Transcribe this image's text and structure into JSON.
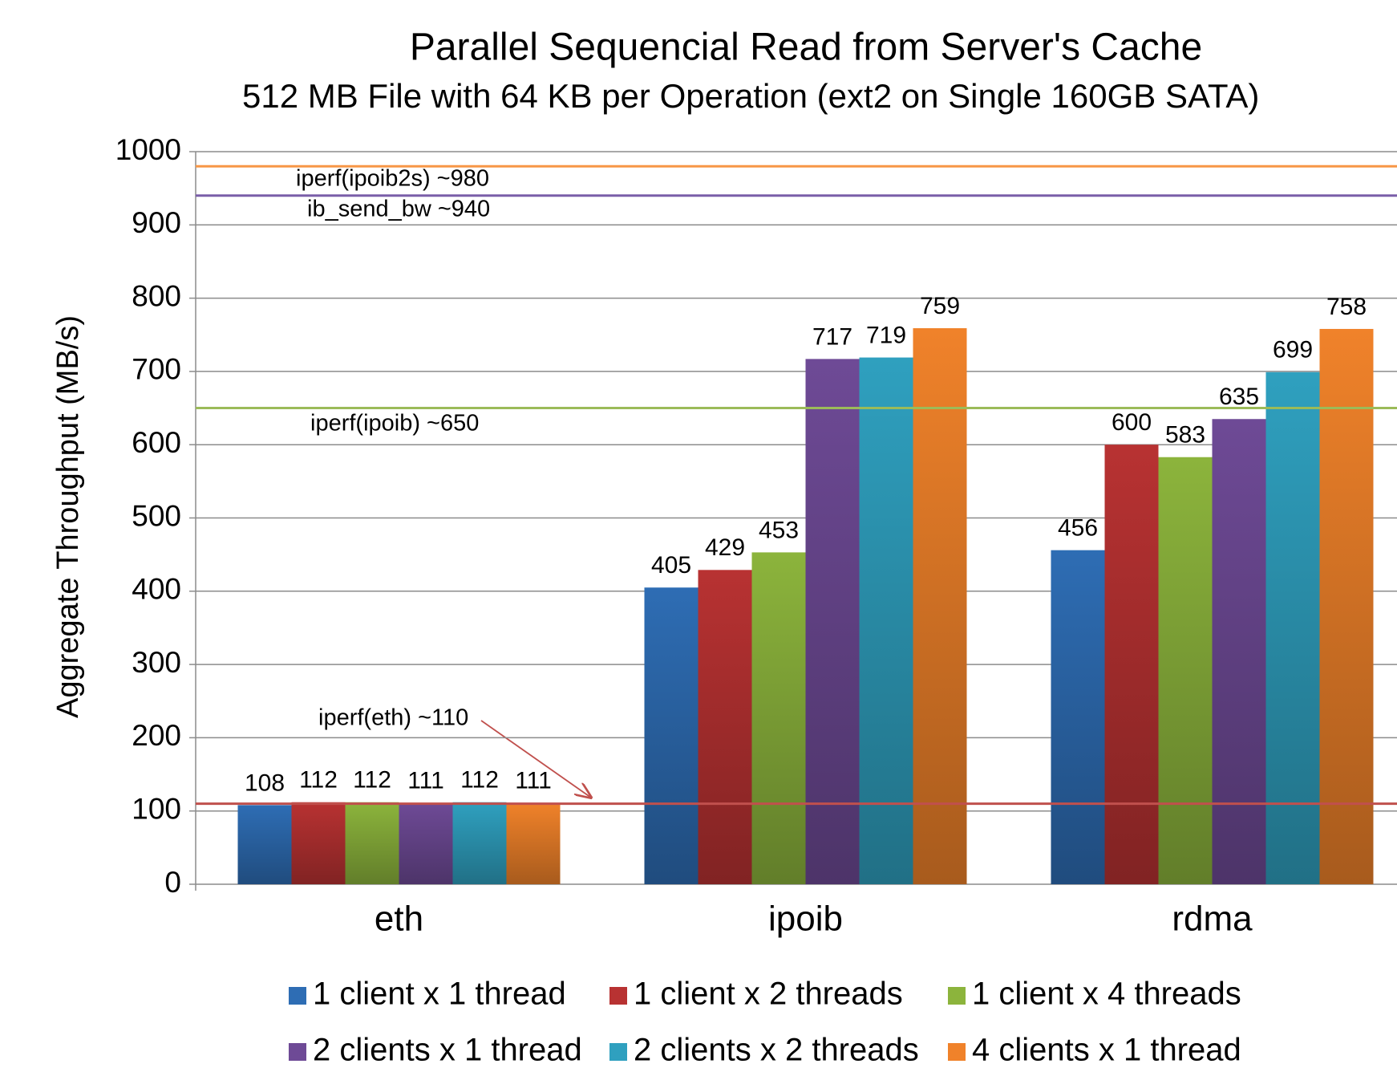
{
  "chart_data": {
    "type": "bar",
    "title": "Parallel Sequencial Read from Server's Cache",
    "subtitle": "512 MB File with 64 KB per Operation (ext2 on Single 160GB SATA)",
    "y_label": "Aggregate Throughput (MB/s)",
    "categories": [
      "eth",
      "ipoib",
      "rdma"
    ],
    "series": [
      {
        "name": "1 client x 1 thread",
        "color": "#2e6db4",
        "values": [
          108,
          405,
          456
        ]
      },
      {
        "name": "1 client x 2 threads",
        "color": "#b83232",
        "values": [
          112,
          429,
          600
        ]
      },
      {
        "name": "1 client x 4 threads",
        "color": "#8cb43c",
        "values": [
          112,
          453,
          583
        ]
      },
      {
        "name": "2 clients x 1 thread",
        "color": "#6e4a96",
        "values": [
          111,
          717,
          635
        ]
      },
      {
        "name": "2 clients x 2 threads",
        "color": "#2fa0bf",
        "values": [
          112,
          719,
          699
        ]
      },
      {
        "name": "4 clients x 1 thread",
        "color": "#f0822a",
        "values": [
          111,
          759,
          758
        ]
      }
    ],
    "reference_lines": [
      {
        "label": "iperf(ipoib2s) ~980",
        "value": 980,
        "color": "#f79646"
      },
      {
        "label": "ib_send_bw ~940",
        "value": 940,
        "color": "#7a5ea8"
      },
      {
        "label": "iperf(ipoib) ~650",
        "value": 650,
        "color": "#9bbb59"
      },
      {
        "label": "iperf(eth) ~110",
        "value": 110,
        "color": "#c0504d"
      }
    ],
    "ylim": [
      0,
      1000
    ],
    "yticks": [
      0,
      100,
      200,
      300,
      400,
      500,
      600,
      700,
      800,
      900,
      1000
    ],
    "grid": true,
    "legend": "bottom"
  }
}
